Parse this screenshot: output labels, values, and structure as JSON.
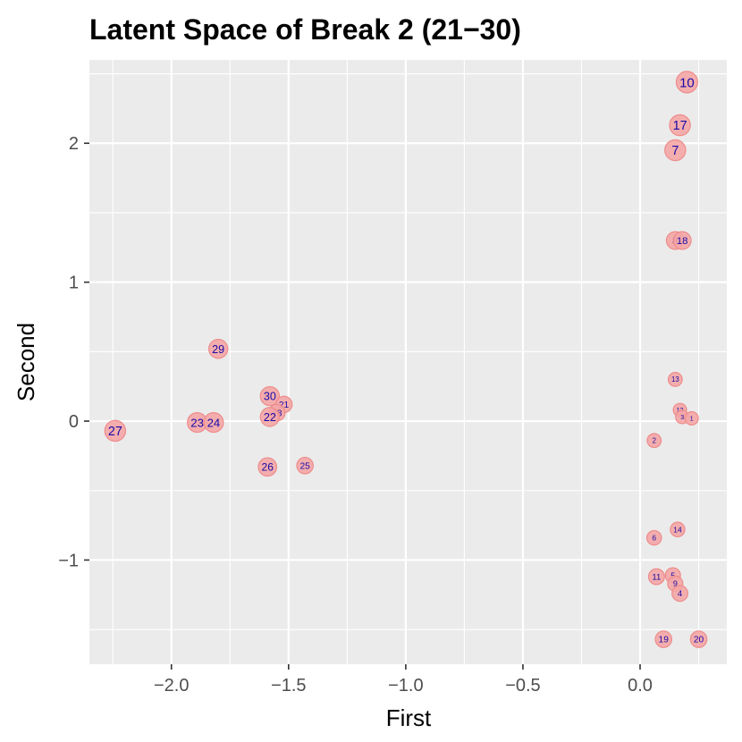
{
  "chart_data": {
    "type": "scatter",
    "title": "Latent Space of Break 2 (21−30)",
    "xlabel": "First",
    "ylabel": "Second",
    "xlim": [
      -2.35,
      0.37
    ],
    "ylim": [
      -1.75,
      2.6
    ],
    "x_ticks": [
      -2.0,
      -1.5,
      -1.0,
      -0.5,
      0.0
    ],
    "x_tick_labels": [
      "−2.0",
      "−1.5",
      "−1.0",
      "−0.5",
      "0.0"
    ],
    "y_ticks": [
      -1,
      0,
      1,
      2
    ],
    "y_tick_labels": [
      "−1",
      "0",
      "1",
      "2"
    ],
    "grid": true,
    "legend": "none",
    "colors": {
      "panel": "#ebebeb",
      "grid": "#ffffff",
      "point_fill": "#f4a6a6",
      "point_stroke": "#ee8c8c",
      "label": "#1a0aa8"
    },
    "points": [
      {
        "label": "10",
        "x": 0.2,
        "y": 2.44,
        "size": 1.0
      },
      {
        "label": "17",
        "x": 0.17,
        "y": 2.13,
        "size": 0.95
      },
      {
        "label": "7",
        "x": 0.15,
        "y": 1.95,
        "size": 0.95
      },
      {
        "label": "8",
        "x": 0.15,
        "y": 1.3,
        "size": 0.7
      },
      {
        "label": "18",
        "x": 0.18,
        "y": 1.3,
        "size": 0.7
      },
      {
        "label": "29",
        "x": -1.8,
        "y": 0.52,
        "size": 0.8
      },
      {
        "label": "30",
        "x": -1.58,
        "y": 0.18,
        "size": 0.8
      },
      {
        "label": "21",
        "x": -1.52,
        "y": 0.12,
        "size": 0.6
      },
      {
        "label": "28",
        "x": -1.55,
        "y": 0.06,
        "size": 0.6
      },
      {
        "label": "22",
        "x": -1.58,
        "y": 0.03,
        "size": 0.8
      },
      {
        "label": "27",
        "x": -2.24,
        "y": -0.07,
        "size": 0.95
      },
      {
        "label": "23",
        "x": -1.89,
        "y": -0.01,
        "size": 0.85
      },
      {
        "label": "24",
        "x": -1.82,
        "y": -0.01,
        "size": 0.85
      },
      {
        "label": "26",
        "x": -1.59,
        "y": -0.33,
        "size": 0.75
      },
      {
        "label": "25",
        "x": -1.43,
        "y": -0.32,
        "size": 0.6
      },
      {
        "label": "13",
        "x": 0.15,
        "y": 0.3,
        "size": 0.4
      },
      {
        "label": "12",
        "x": 0.17,
        "y": 0.08,
        "size": 0.35
      },
      {
        "label": "3",
        "x": 0.18,
        "y": 0.03,
        "size": 0.35
      },
      {
        "label": "1",
        "x": 0.22,
        "y": 0.02,
        "size": 0.35
      },
      {
        "label": "2",
        "x": 0.06,
        "y": -0.14,
        "size": 0.4
      },
      {
        "label": "14",
        "x": 0.16,
        "y": -0.78,
        "size": 0.45
      },
      {
        "label": "6",
        "x": 0.06,
        "y": -0.84,
        "size": 0.45
      },
      {
        "label": "11",
        "x": 0.07,
        "y": -1.12,
        "size": 0.55
      },
      {
        "label": "5",
        "x": 0.14,
        "y": -1.11,
        "size": 0.5
      },
      {
        "label": "9",
        "x": 0.15,
        "y": -1.17,
        "size": 0.5
      },
      {
        "label": "4",
        "x": 0.17,
        "y": -1.24,
        "size": 0.55
      },
      {
        "label": "19",
        "x": 0.1,
        "y": -1.57,
        "size": 0.6
      },
      {
        "label": "20",
        "x": 0.25,
        "y": -1.57,
        "size": 0.6
      }
    ]
  }
}
